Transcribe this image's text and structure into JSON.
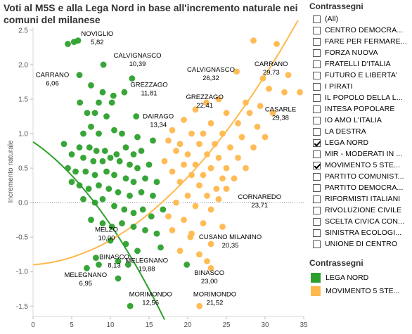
{
  "title": "Voti al M5S e alla Lega Nord in base all'incremento naturale nei comuni del milanese",
  "filter": {
    "title": "Contrassegni",
    "items": [
      {
        "label": "(All)",
        "checked": false
      },
      {
        "label": "CENTRO DEMOCRA...",
        "checked": false
      },
      {
        "label": "FARE PER FERMARE...",
        "checked": false
      },
      {
        "label": "FORZA NUOVA",
        "checked": false
      },
      {
        "label": "FRATELLI D'ITALIA",
        "checked": false
      },
      {
        "label": "FUTURO E LIBERTA'",
        "checked": false
      },
      {
        "label": "I PIRATI",
        "checked": false
      },
      {
        "label": "IL POPOLO DELLA L...",
        "checked": false
      },
      {
        "label": "INTESA POPOLARE",
        "checked": false
      },
      {
        "label": "IO AMO L'ITALIA",
        "checked": false
      },
      {
        "label": "LA DESTRA",
        "checked": false
      },
      {
        "label": "LEGA NORD",
        "checked": true
      },
      {
        "label": "MIR - MODERATI IN ...",
        "checked": false
      },
      {
        "label": "MOVIMENTO 5 STE...",
        "checked": true
      },
      {
        "label": "PARTITO COMUNIST...",
        "checked": false
      },
      {
        "label": "PARTITO DEMOCRA...",
        "checked": false
      },
      {
        "label": "RIFORMISTI ITALIANI",
        "checked": false
      },
      {
        "label": "RIVOLUZIONE CIVILE",
        "checked": false
      },
      {
        "label": "SCELTA CIVICA CON...",
        "checked": false
      },
      {
        "label": "SINISTRA ECOLOGI...",
        "checked": false
      },
      {
        "label": "UNIONE DI CENTRO",
        "checked": false
      }
    ]
  },
  "legend": {
    "title": "Contrassegni",
    "items": [
      {
        "label": "LEGA NORD",
        "color": "#2ca02c"
      },
      {
        "label": "MOVIMENTO 5 STE...",
        "color": "#ffb84d"
      }
    ]
  },
  "chart_data": {
    "type": "scatter",
    "ylabel": "Incremento naturale",
    "xlabel": "",
    "xlim": [
      0,
      35
    ],
    "ylim": [
      -1.65,
      2.55
    ],
    "xticks": [
      "0",
      "5",
      "10",
      "15",
      "20",
      "25",
      "30",
      "35"
    ],
    "yticks": [
      "2.5",
      "2.0",
      "1.5",
      "1.0",
      "0.5",
      "0.0",
      "-0.5",
      "-1.0",
      "-1.5"
    ],
    "series": [
      {
        "name": "LEGA NORD",
        "color": "#2ca02c",
        "trend": [
          0.88,
          -0.075,
          -0.0045
        ],
        "points": [
          [
            5.3,
            2.33
          ],
          [
            5.82,
            2.35
          ],
          [
            4.5,
            2.3
          ],
          [
            9.1,
            2.0
          ],
          [
            6.0,
            1.85
          ],
          [
            6.06,
            1.45
          ],
          [
            11.81,
            1.6
          ],
          [
            12.8,
            1.8
          ],
          [
            10.39,
            1.55
          ],
          [
            9.0,
            1.6
          ],
          [
            7.5,
            1.7
          ],
          [
            8.5,
            1.45
          ],
          [
            10.2,
            1.45
          ],
          [
            8.0,
            1.3
          ],
          [
            7.0,
            1.3
          ],
          [
            9.5,
            1.25
          ],
          [
            13.34,
            1.25
          ],
          [
            7.5,
            1.1
          ],
          [
            10.5,
            1.05
          ],
          [
            6.5,
            1.0
          ],
          [
            8.5,
            1.0
          ],
          [
            11.5,
            1.0
          ],
          [
            13.5,
            0.95
          ],
          [
            15.5,
            0.9
          ],
          [
            4.0,
            0.85
          ],
          [
            6.0,
            0.8
          ],
          [
            7.3,
            0.8
          ],
          [
            8.2,
            0.75
          ],
          [
            9.3,
            0.75
          ],
          [
            10.8,
            0.7
          ],
          [
            12.0,
            0.8
          ],
          [
            13.0,
            0.7
          ],
          [
            14.0,
            0.75
          ],
          [
            5.0,
            0.7
          ],
          [
            6.5,
            0.65
          ],
          [
            7.8,
            0.6
          ],
          [
            9.0,
            0.6
          ],
          [
            10.0,
            0.65
          ],
          [
            11.2,
            0.6
          ],
          [
            12.5,
            0.55
          ],
          [
            13.5,
            0.5
          ],
          [
            15.0,
            0.55
          ],
          [
            4.5,
            0.5
          ],
          [
            5.5,
            0.45
          ],
          [
            6.8,
            0.45
          ],
          [
            8.0,
            0.4
          ],
          [
            9.5,
            0.45
          ],
          [
            10.5,
            0.4
          ],
          [
            12.0,
            0.35
          ],
          [
            13.0,
            0.3
          ],
          [
            14.5,
            0.35
          ],
          [
            16.0,
            0.3
          ],
          [
            5.0,
            0.3
          ],
          [
            6.0,
            0.25
          ],
          [
            7.2,
            0.2
          ],
          [
            8.5,
            0.25
          ],
          [
            9.8,
            0.2
          ],
          [
            11.0,
            0.15
          ],
          [
            12.5,
            0.1
          ],
          [
            14.0,
            0.15
          ],
          [
            15.5,
            0.1
          ],
          [
            6.5,
            0.05
          ],
          [
            8.0,
            0.0
          ],
          [
            9.0,
            0.05
          ],
          [
            10.5,
            -0.05
          ],
          [
            11.8,
            -0.1
          ],
          [
            13.0,
            -0.15
          ],
          [
            14.2,
            -0.1
          ],
          [
            15.3,
            -0.2
          ],
          [
            16.8,
            -0.1
          ],
          [
            7.5,
            -0.25
          ],
          [
            9.0,
            -0.3
          ],
          [
            10.2,
            -0.35
          ],
          [
            11.5,
            -0.3
          ],
          [
            13.0,
            -0.35
          ],
          [
            14.5,
            -0.4
          ],
          [
            16.0,
            -0.45
          ],
          [
            10.0,
            -0.55
          ],
          [
            12.0,
            -0.6
          ],
          [
            13.5,
            -0.7
          ],
          [
            16.5,
            -0.65
          ],
          [
            8.13,
            -0.8
          ],
          [
            8.5,
            -0.9
          ],
          [
            6.95,
            -0.95
          ],
          [
            11.0,
            -0.85
          ],
          [
            12.3,
            -0.9
          ],
          [
            19.88,
            -0.9
          ],
          [
            11.0,
            -1.1
          ],
          [
            12.56,
            -1.5
          ]
        ]
      },
      {
        "name": "MOVIMENTO 5 STE...",
        "color": "#ffb84d",
        "trend": [
          -0.9,
          0.0075,
          0.0028
        ],
        "points": [
          [
            28.5,
            2.35
          ],
          [
            31.5,
            2.3
          ],
          [
            26.32,
            1.9
          ],
          [
            29.73,
            1.8
          ],
          [
            33.0,
            1.85
          ],
          [
            30.5,
            1.65
          ],
          [
            32.5,
            1.6
          ],
          [
            34.5,
            1.6
          ],
          [
            22.41,
            1.45
          ],
          [
            29.38,
            1.4
          ],
          [
            24.0,
            1.5
          ],
          [
            27.5,
            1.45
          ],
          [
            21.0,
            1.35
          ],
          [
            25.0,
            1.3
          ],
          [
            28.0,
            1.3
          ],
          [
            31.0,
            1.3
          ],
          [
            19.5,
            1.2
          ],
          [
            23.0,
            1.15
          ],
          [
            26.5,
            1.15
          ],
          [
            29.0,
            1.1
          ],
          [
            18.0,
            1.05
          ],
          [
            20.5,
            1.0
          ],
          [
            22.0,
            1.0
          ],
          [
            24.5,
            1.0
          ],
          [
            27.0,
            0.95
          ],
          [
            30.0,
            0.95
          ],
          [
            17.5,
            0.9
          ],
          [
            19.0,
            0.85
          ],
          [
            21.5,
            0.85
          ],
          [
            23.5,
            0.85
          ],
          [
            25.5,
            0.8
          ],
          [
            28.5,
            0.8
          ],
          [
            18.5,
            0.75
          ],
          [
            20.0,
            0.7
          ],
          [
            22.5,
            0.7
          ],
          [
            24.0,
            0.65
          ],
          [
            26.5,
            0.65
          ],
          [
            17.0,
            0.6
          ],
          [
            19.5,
            0.55
          ],
          [
            21.0,
            0.55
          ],
          [
            23.0,
            0.5
          ],
          [
            25.0,
            0.5
          ],
          [
            27.5,
            0.5
          ],
          [
            18.0,
            0.45
          ],
          [
            20.5,
            0.4
          ],
          [
            22.0,
            0.4
          ],
          [
            24.5,
            0.35
          ],
          [
            26.0,
            0.35
          ],
          [
            19.0,
            0.3
          ],
          [
            21.5,
            0.25
          ],
          [
            23.71,
            0.2
          ],
          [
            25.0,
            0.2
          ],
          [
            20.0,
            0.1
          ],
          [
            22.5,
            0.1
          ],
          [
            24.0,
            0.05
          ],
          [
            18.5,
            0.0
          ],
          [
            21.0,
            -0.05
          ],
          [
            23.0,
            -0.1
          ],
          [
            17.5,
            -0.2
          ],
          [
            19.5,
            -0.25
          ],
          [
            22.0,
            -0.3
          ],
          [
            24.5,
            -0.35
          ],
          [
            18.0,
            -0.4
          ],
          [
            20.5,
            -0.45
          ],
          [
            20.35,
            -0.5
          ],
          [
            23.0,
            -0.6
          ],
          [
            19.0,
            -0.7
          ],
          [
            21.5,
            -0.75
          ],
          [
            22.5,
            -0.85
          ],
          [
            23.0,
            -0.95
          ],
          [
            21.52,
            -1.5
          ]
        ]
      }
    ],
    "annotations": [
      {
        "name": "NOVIGLIO",
        "value": "5,82",
        "x": 8.3,
        "y": 2.42
      },
      {
        "name": "CARRANO",
        "value": "6,06",
        "x": 2.5,
        "y": 1.82
      },
      {
        "name": "CALVIGNASCO",
        "value": "10,39",
        "x": 13.5,
        "y": 2.1
      },
      {
        "name": "GREZZAGO",
        "value": "11,81",
        "x": 15.0,
        "y": 1.68
      },
      {
        "name": "DAIRAGO",
        "value": "13,34",
        "x": 16.2,
        "y": 1.22
      },
      {
        "name": "CALVIGNASCO",
        "value": "26,32",
        "x": 23.0,
        "y": 1.9
      },
      {
        "name": "CARRANO",
        "value": "29,73",
        "x": 30.8,
        "y": 1.98
      },
      {
        "name": "GREZZAGO",
        "value": "22,41",
        "x": 22.2,
        "y": 1.5
      },
      {
        "name": "CASARLE",
        "value": "29,38",
        "x": 32.0,
        "y": 1.32
      },
      {
        "name": "CORNAREDO",
        "value": "23,71",
        "x": 29.3,
        "y": 0.05
      },
      {
        "name": "MELZO",
        "value": "10,00",
        "x": 9.5,
        "y": -0.42
      },
      {
        "name": "CUSANO MILANINO",
        "value": "20,35",
        "x": 25.5,
        "y": -0.53
      },
      {
        "name": "BINASCO",
        "value": "8,13",
        "x": 10.5,
        "y": -0.82
      },
      {
        "name": "MELEGNANO",
        "value": "19,88",
        "x": 14.7,
        "y": -0.87
      },
      {
        "name": "MELEGNANO",
        "value": "6,95",
        "x": 6.8,
        "y": -1.08
      },
      {
        "name": "BINASCO",
        "value": "23,00",
        "x": 22.8,
        "y": -1.05
      },
      {
        "name": "MORIMONDO",
        "value": "12,56",
        "x": 15.2,
        "y": -1.36
      },
      {
        "name": "MORIMONDO",
        "value": "21,52",
        "x": 23.5,
        "y": -1.36
      }
    ]
  }
}
